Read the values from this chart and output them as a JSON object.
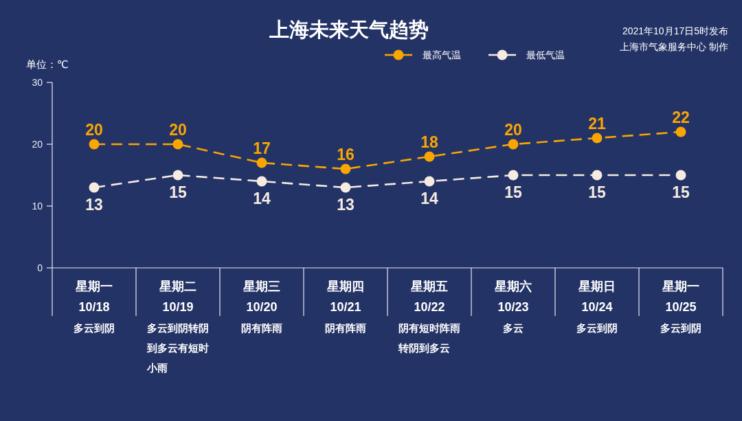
{
  "chart_data": {
    "type": "line",
    "title": "上海未来天气趋势",
    "ylabel": "单位：℃",
    "annotations": [
      "2021年10月17日5时发布",
      "上海市气象服务中心 制作"
    ],
    "categories": [
      "星期一\n10/18\n多云到阴",
      "星期二\n10/19\n多云到阴转阴到多云有短时小雨",
      "星期三\n10/20\n阴有阵雨",
      "星期四\n10/21\n阴有阵雨",
      "星期五\n10/22\n阴有短时阵雨转阴到多云",
      "星期六\n10/23\n多云",
      "星期日\n10/24\n多云到阴",
      "星期一\n10/25\n多云到阴"
    ],
    "series": [
      {
        "name": "最高气温",
        "color": "#f9a602",
        "values": [
          20,
          20,
          17,
          16,
          18,
          20,
          21,
          22
        ]
      },
      {
        "name": "最低气温",
        "color": "#f5ebe0",
        "values": [
          13,
          15,
          14,
          13,
          14,
          15,
          15,
          15
        ]
      }
    ],
    "ylim": [
      0,
      30
    ],
    "yticks": [
      0,
      10,
      20,
      30
    ],
    "data_labels": true,
    "legend": "top",
    "marker": "circle",
    "line_style": "dashed"
  }
}
